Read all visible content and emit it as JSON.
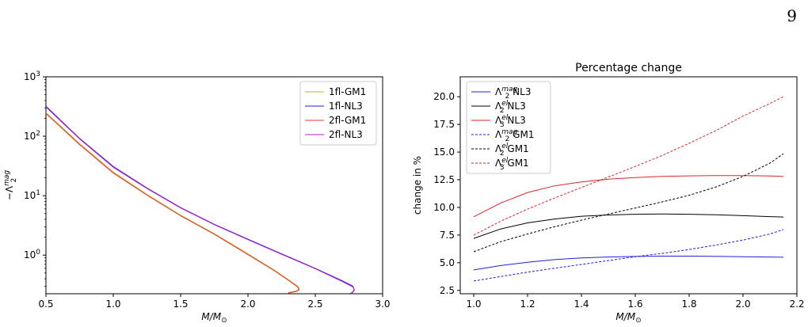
{
  "page_number": "9",
  "chart_data": [
    {
      "type": "line",
      "title": "",
      "xlabel": "M/M_⊙",
      "ylabel": "−Λ_2^mag",
      "xlim": [
        0.5,
        3.0
      ],
      "ylim_log10": [
        -0.65,
        3.0
      ],
      "y_scale": "log",
      "x_ticks": [
        "0.5",
        "1.0",
        "1.5",
        "2.0",
        "2.5",
        "3.0"
      ],
      "x_tick_values": [
        0.5,
        1.0,
        1.5,
        2.0,
        2.5,
        3.0
      ],
      "y_ticks": [
        "10^0",
        "10^1",
        "10^2",
        "10^3"
      ],
      "y_tick_values": [
        0,
        1,
        2,
        3
      ],
      "legend_position": "top-right",
      "series": [
        {
          "name": "1fl-GM1",
          "color": "#bfae2a",
          "x": [
            0.5,
            0.75,
            1.0,
            1.25,
            1.5,
            1.75,
            2.0,
            2.2,
            2.32,
            2.37,
            2.38,
            2.36,
            2.3
          ],
          "y": [
            250,
            75,
            25,
            10.5,
            4.7,
            2.3,
            1.05,
            0.55,
            0.36,
            0.3,
            0.27,
            0.25,
            0.235
          ]
        },
        {
          "name": "1fl-NL3",
          "color": "#2020e6",
          "x": [
            0.5,
            0.75,
            1.0,
            1.25,
            1.5,
            1.75,
            2.0,
            2.25,
            2.5,
            2.7,
            2.78,
            2.79,
            2.77,
            2.7,
            2.65
          ],
          "y": [
            320,
            92,
            31,
            13.5,
            6.3,
            3.3,
            1.85,
            1.05,
            0.6,
            0.37,
            0.3,
            0.26,
            0.23,
            0.21,
            0.2
          ]
        },
        {
          "name": "2fl-GM1",
          "color": "#e03c31",
          "x": [
            0.5,
            0.75,
            1.0,
            1.25,
            1.5,
            1.75,
            2.0,
            2.2,
            2.32,
            2.37,
            2.38,
            2.36,
            2.3
          ],
          "y": [
            240,
            72,
            24,
            10.2,
            4.6,
            2.25,
            1.02,
            0.54,
            0.35,
            0.29,
            0.26,
            0.245,
            0.23
          ]
        },
        {
          "name": "2fl-NL3",
          "color": "#c21fc2",
          "x": [
            0.5,
            0.75,
            1.0,
            1.25,
            1.5,
            1.75,
            2.0,
            2.25,
            2.5,
            2.7,
            2.78,
            2.79,
            2.77,
            2.7,
            2.65
          ],
          "y": [
            310,
            90,
            30,
            13.2,
            6.2,
            3.25,
            1.82,
            1.03,
            0.59,
            0.36,
            0.29,
            0.255,
            0.225,
            0.205,
            0.195
          ]
        }
      ]
    },
    {
      "type": "line",
      "title": "Percentage change",
      "xlabel": "M/M_⊙",
      "ylabel": "change in %",
      "xlim": [
        0.95,
        2.2
      ],
      "ylim": [
        2.2,
        21.8
      ],
      "x_ticks": [
        "1.0",
        "1.2",
        "1.4",
        "1.6",
        "1.8",
        "2.0",
        "2.2"
      ],
      "x_tick_values": [
        1.0,
        1.2,
        1.4,
        1.6,
        1.8,
        2.0,
        2.2
      ],
      "y_ticks": [
        "2.5",
        "5.0",
        "7.5",
        "10.0",
        "12.5",
        "15.0",
        "17.5",
        "20.0"
      ],
      "y_tick_values": [
        2.5,
        5.0,
        7.5,
        10.0,
        12.5,
        15.0,
        17.5,
        20.0
      ],
      "legend_position": "top-left",
      "series": [
        {
          "name": "Λ_2^mag NL3",
          "color": "#1f1fe0",
          "dash": "solid",
          "x": [
            1.0,
            1.1,
            1.2,
            1.3,
            1.4,
            1.5,
            1.6,
            1.7,
            1.8,
            1.9,
            2.0,
            2.1,
            2.15
          ],
          "y": [
            4.35,
            4.75,
            5.05,
            5.28,
            5.43,
            5.52,
            5.57,
            5.6,
            5.6,
            5.58,
            5.55,
            5.52,
            5.5
          ]
        },
        {
          "name": "Λ_2^el NL3",
          "color": "#000000",
          "dash": "solid",
          "x": [
            1.0,
            1.1,
            1.2,
            1.3,
            1.4,
            1.5,
            1.6,
            1.7,
            1.8,
            1.9,
            2.0,
            2.1,
            2.15
          ],
          "y": [
            7.2,
            8.05,
            8.6,
            8.95,
            9.2,
            9.32,
            9.38,
            9.4,
            9.38,
            9.33,
            9.25,
            9.17,
            9.13
          ]
        },
        {
          "name": "Λ_3^el NL3",
          "color": "#d62728",
          "dash": "solid",
          "x": [
            1.0,
            1.1,
            1.2,
            1.3,
            1.4,
            1.5,
            1.6,
            1.7,
            1.8,
            1.9,
            2.0,
            2.1,
            2.15
          ],
          "y": [
            9.15,
            10.4,
            11.35,
            11.95,
            12.3,
            12.55,
            12.7,
            12.8,
            12.85,
            12.88,
            12.87,
            12.84,
            12.8
          ]
        },
        {
          "name": "Λ_2^mag GM1",
          "color": "#1f1fe0",
          "dash": "dashed",
          "x": [
            1.0,
            1.1,
            1.2,
            1.3,
            1.4,
            1.5,
            1.6,
            1.7,
            1.8,
            1.9,
            2.0,
            2.1,
            2.15
          ],
          "y": [
            3.35,
            3.75,
            4.15,
            4.5,
            4.85,
            5.2,
            5.55,
            5.85,
            6.2,
            6.6,
            7.05,
            7.6,
            8.0
          ]
        },
        {
          "name": "Λ_2^el GM1",
          "color": "#000000",
          "dash": "dashed",
          "x": [
            1.0,
            1.1,
            1.2,
            1.3,
            1.4,
            1.5,
            1.6,
            1.7,
            1.8,
            1.9,
            2.0,
            2.1,
            2.15
          ],
          "y": [
            6.0,
            6.9,
            7.6,
            8.25,
            8.85,
            9.4,
            9.95,
            10.5,
            11.1,
            11.85,
            12.8,
            14.0,
            14.85
          ]
        },
        {
          "name": "Λ_3^el GM1",
          "color": "#d62728",
          "dash": "dashed",
          "x": [
            1.0,
            1.1,
            1.2,
            1.3,
            1.4,
            1.5,
            1.6,
            1.7,
            1.8,
            1.9,
            2.0,
            2.1,
            2.15
          ],
          "y": [
            7.5,
            8.75,
            9.85,
            10.85,
            11.8,
            12.75,
            13.7,
            14.7,
            15.8,
            16.95,
            18.25,
            19.4,
            20.0
          ]
        }
      ]
    }
  ]
}
